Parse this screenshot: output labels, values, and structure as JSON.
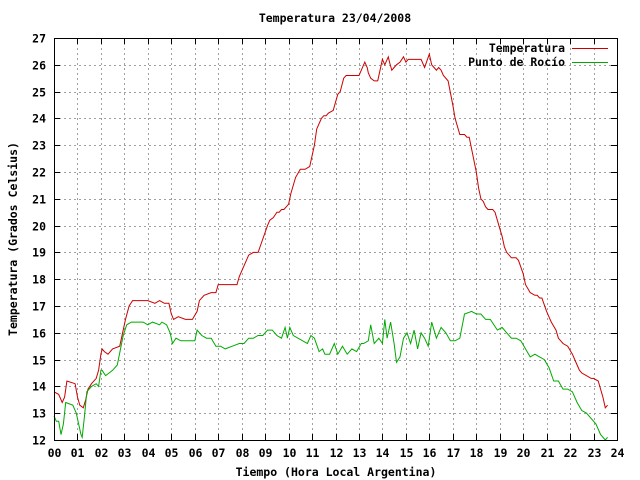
{
  "chart_data": {
    "type": "line",
    "title": "Temperatura 23/04/2008",
    "xlabel": "Tiempo (Hora Local Argentina)",
    "ylabel": "Temperatura (Grados Celsius)",
    "xlim": [
      0,
      24
    ],
    "ylim": [
      12,
      27
    ],
    "x_ticks": [
      "00",
      "01",
      "02",
      "03",
      "04",
      "05",
      "06",
      "07",
      "08",
      "09",
      "10",
      "11",
      "12",
      "13",
      "14",
      "15",
      "16",
      "17",
      "18",
      "19",
      "20",
      "21",
      "22",
      "23",
      "24"
    ],
    "y_ticks": [
      12,
      13,
      14,
      15,
      16,
      17,
      18,
      19,
      20,
      21,
      22,
      23,
      24,
      25,
      26,
      27
    ],
    "grid": true,
    "legend_position": "top-right",
    "series": [
      {
        "name": "Temperatura",
        "color": "#cc0000",
        "x": [
          0.0,
          0.2,
          0.35,
          0.45,
          0.55,
          0.9,
          1.0,
          1.1,
          1.25,
          1.35,
          1.45,
          1.6,
          1.8,
          1.9,
          2.0,
          2.05,
          2.15,
          2.3,
          2.5,
          2.8,
          2.95,
          3.05,
          3.2,
          3.35,
          3.5,
          3.7,
          4.0,
          4.3,
          4.5,
          4.7,
          4.9,
          5.0,
          5.1,
          5.3,
          5.6,
          5.9,
          6.1,
          6.2,
          6.4,
          6.7,
          6.9,
          7.0,
          7.2,
          7.6,
          7.8,
          7.9,
          8.1,
          8.3,
          8.5,
          8.7,
          8.9,
          9.1,
          9.2,
          9.35,
          9.5,
          9.6,
          9.7,
          9.8,
          10.0,
          10.1,
          10.3,
          10.5,
          10.7,
          10.9,
          11.1,
          11.2,
          11.4,
          11.5,
          11.6,
          11.7,
          11.9,
          12.1,
          12.2,
          12.35,
          12.45,
          12.6,
          12.8,
          13.0,
          13.1,
          13.25,
          13.35,
          13.4,
          13.5,
          13.65,
          13.8,
          14.0,
          14.1,
          14.25,
          14.3,
          14.4,
          14.5,
          14.6,
          14.75,
          14.9,
          15.0,
          15.1,
          15.2,
          15.35,
          15.5,
          15.65,
          15.8,
          16.0,
          16.1,
          16.2,
          16.3,
          16.4,
          16.5,
          16.6,
          16.8,
          17.0,
          17.1,
          17.3,
          17.5,
          17.6,
          17.7,
          18.0,
          18.1,
          18.2,
          18.3,
          18.4,
          18.5,
          18.6,
          18.7,
          18.8,
          19.0,
          19.1,
          19.2,
          19.3,
          19.4,
          19.5,
          19.6,
          19.7,
          19.8,
          20.0,
          20.1,
          20.3,
          20.5,
          20.6,
          20.7,
          20.8,
          21.0,
          21.2,
          21.4,
          21.5,
          21.6,
          21.7,
          21.9,
          22.1,
          22.3,
          22.4,
          22.5,
          22.7,
          22.9,
          23.0,
          23.2,
          23.3,
          23.4,
          23.5,
          23.6
        ],
        "y": [
          13.8,
          13.7,
          13.4,
          13.6,
          14.2,
          14.1,
          13.6,
          13.3,
          13.2,
          13.5,
          13.9,
          14.1,
          14.3,
          14.6,
          15.2,
          15.4,
          15.3,
          15.2,
          15.4,
          15.5,
          16.1,
          16.5,
          17.0,
          17.2,
          17.2,
          17.2,
          17.2,
          17.1,
          17.2,
          17.1,
          17.1,
          16.7,
          16.5,
          16.6,
          16.5,
          16.5,
          16.8,
          17.2,
          17.4,
          17.5,
          17.5,
          17.8,
          17.8,
          17.8,
          17.8,
          18.1,
          18.5,
          18.9,
          19.0,
          19.0,
          19.5,
          20.0,
          20.2,
          20.3,
          20.5,
          20.5,
          20.6,
          20.6,
          20.8,
          21.2,
          21.8,
          22.1,
          22.1,
          22.2,
          23.0,
          23.6,
          24.0,
          24.1,
          24.1,
          24.2,
          24.3,
          24.9,
          25.0,
          25.5,
          25.6,
          25.6,
          25.6,
          25.6,
          25.8,
          26.1,
          25.9,
          25.7,
          25.5,
          25.4,
          25.4,
          26.2,
          26.0,
          26.3,
          26.1,
          25.8,
          25.9,
          26.0,
          26.1,
          26.3,
          26.1,
          26.2,
          26.2,
          26.2,
          26.2,
          26.2,
          25.9,
          26.4,
          26.0,
          25.9,
          25.8,
          25.9,
          25.8,
          25.6,
          25.4,
          24.5,
          24.0,
          23.4,
          23.4,
          23.3,
          23.3,
          22.0,
          21.4,
          21.0,
          20.9,
          20.7,
          20.6,
          20.6,
          20.6,
          20.5,
          19.9,
          19.6,
          19.2,
          19.0,
          18.9,
          18.8,
          18.8,
          18.8,
          18.7,
          18.2,
          17.8,
          17.5,
          17.4,
          17.4,
          17.3,
          17.3,
          16.8,
          16.4,
          16.1,
          15.8,
          15.7,
          15.6,
          15.5,
          15.2,
          14.8,
          14.6,
          14.5,
          14.4,
          14.3,
          14.3,
          14.2,
          13.9,
          13.6,
          13.2,
          13.3
        ]
      },
      {
        "name": "Punto de Rocío",
        "color": "#00aa00",
        "x": [
          0.0,
          0.1,
          0.2,
          0.3,
          0.4,
          0.5,
          0.8,
          0.95,
          1.05,
          1.15,
          1.2,
          1.3,
          1.4,
          1.6,
          1.8,
          1.9,
          2.0,
          2.05,
          2.2,
          2.35,
          2.5,
          2.7,
          2.95,
          3.1,
          3.3,
          3.5,
          3.8,
          4.0,
          4.2,
          4.5,
          4.6,
          4.8,
          4.95,
          5.05,
          5.2,
          5.4,
          5.6,
          5.8,
          6.0,
          6.1,
          6.3,
          6.5,
          6.7,
          6.9,
          7.1,
          7.3,
          7.6,
          7.9,
          8.1,
          8.3,
          8.5,
          8.7,
          8.9,
          9.1,
          9.3,
          9.5,
          9.7,
          9.85,
          9.95,
          10.05,
          10.2,
          10.4,
          10.6,
          10.8,
          10.95,
          11.1,
          11.3,
          11.45,
          11.55,
          11.75,
          11.95,
          12.1,
          12.3,
          12.5,
          12.7,
          12.9,
          13.1,
          13.2,
          13.4,
          13.5,
          13.65,
          13.85,
          14.0,
          14.1,
          14.2,
          14.35,
          14.5,
          14.6,
          14.75,
          14.9,
          15.05,
          15.2,
          15.35,
          15.5,
          15.65,
          15.8,
          15.95,
          16.1,
          16.3,
          16.5,
          16.7,
          16.9,
          17.1,
          17.3,
          17.5,
          17.8,
          18.0,
          18.2,
          18.4,
          18.6,
          18.9,
          19.1,
          19.3,
          19.5,
          19.7,
          19.9,
          20.1,
          20.3,
          20.5,
          20.7,
          20.9,
          21.1,
          21.3,
          21.5,
          21.7,
          21.9,
          22.1,
          22.3,
          22.5,
          22.7,
          22.9,
          23.1,
          23.3,
          23.5,
          23.6
        ],
        "y": [
          12.9,
          12.7,
          12.7,
          12.2,
          12.6,
          13.4,
          13.3,
          13.0,
          12.6,
          12.2,
          12.1,
          12.9,
          13.8,
          14.0,
          14.1,
          14.0,
          14.6,
          14.6,
          14.4,
          14.5,
          14.6,
          14.8,
          15.9,
          16.3,
          16.4,
          16.4,
          16.4,
          16.3,
          16.4,
          16.3,
          16.4,
          16.3,
          16.0,
          15.6,
          15.8,
          15.7,
          15.7,
          15.7,
          15.7,
          16.1,
          15.9,
          15.8,
          15.8,
          15.5,
          15.5,
          15.4,
          15.5,
          15.6,
          15.6,
          15.8,
          15.8,
          15.9,
          15.9,
          16.1,
          16.1,
          15.9,
          15.8,
          16.2,
          15.8,
          16.2,
          15.9,
          15.8,
          15.7,
          15.6,
          15.9,
          15.8,
          15.3,
          15.4,
          15.2,
          15.2,
          15.6,
          15.2,
          15.5,
          15.2,
          15.4,
          15.3,
          15.6,
          15.6,
          15.7,
          16.3,
          15.6,
          15.8,
          15.6,
          16.5,
          15.8,
          16.4,
          15.6,
          14.9,
          15.1,
          15.8,
          16.0,
          15.6,
          16.1,
          15.4,
          16.0,
          15.8,
          15.5,
          16.4,
          15.8,
          16.2,
          16.0,
          15.7,
          15.7,
          15.8,
          16.7,
          16.8,
          16.7,
          16.7,
          16.5,
          16.5,
          16.1,
          16.2,
          16.0,
          15.8,
          15.8,
          15.7,
          15.4,
          15.1,
          15.2,
          15.1,
          15.0,
          14.7,
          14.2,
          14.2,
          13.9,
          13.9,
          13.8,
          13.4,
          13.1,
          13.0,
          12.8,
          12.6,
          12.2,
          12.0,
          12.1
        ]
      }
    ]
  }
}
